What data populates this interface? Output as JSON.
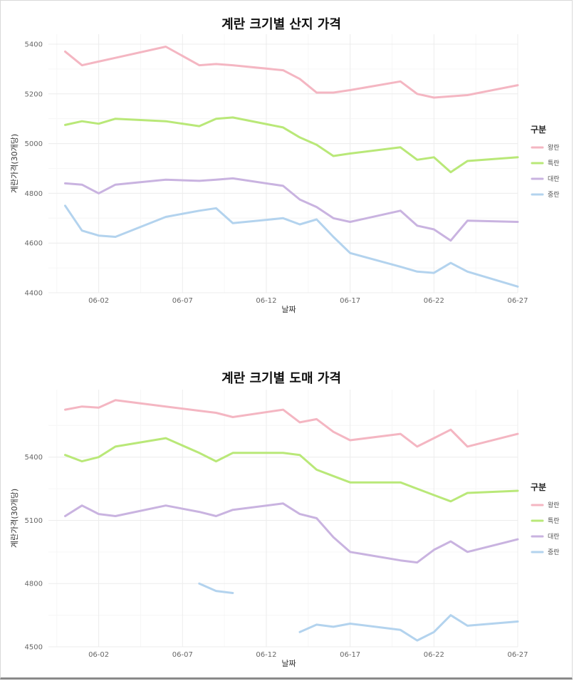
{
  "chart_data": [
    {
      "type": "line",
      "title": "계란 크기별 산지 가격",
      "xlabel": "날짜",
      "ylabel": "계란가격(30개당)",
      "x_ticks": [
        "06-02",
        "06-07",
        "06-12",
        "06-17",
        "06-22",
        "06-27"
      ],
      "xlim": [
        "05-30",
        "06-27"
      ],
      "y_ticks": [
        4400,
        4600,
        4800,
        5000,
        5200,
        5400
      ],
      "ylim": [
        4400,
        5440
      ],
      "grid": true,
      "legend_title": "구분",
      "legend_position": "right",
      "x": [
        "05-31",
        "06-01",
        "06-02",
        "06-03",
        "06-06",
        "06-08",
        "06-09",
        "06-10",
        "06-13",
        "06-14",
        "06-15",
        "06-16",
        "06-17",
        "06-20",
        "06-21",
        "06-22",
        "06-23",
        "06-24",
        "06-27"
      ],
      "series": [
        {
          "name": "왕란",
          "color": "#f4b6c2",
          "values": [
            5370,
            5315,
            5330,
            5345,
            5390,
            5315,
            5320,
            5315,
            5295,
            5260,
            5205,
            5205,
            5215,
            5250,
            5200,
            5185,
            5190,
            5195,
            5235
          ]
        },
        {
          "name": "특란",
          "color": "#b9e878",
          "values": [
            5075,
            5090,
            5080,
            5100,
            5090,
            5070,
            5100,
            5105,
            5065,
            5025,
            4995,
            4950,
            4960,
            4985,
            4935,
            4945,
            4885,
            4930,
            4945
          ]
        },
        {
          "name": "대란",
          "color": "#c9b3e0",
          "values": [
            4840,
            4835,
            4800,
            4835,
            4855,
            4850,
            4855,
            4860,
            4830,
            4775,
            4745,
            4700,
            4685,
            4730,
            4670,
            4655,
            4610,
            4690,
            4685
          ]
        },
        {
          "name": "중란",
          "color": "#b3d3ee",
          "values": [
            4750,
            4650,
            4630,
            4625,
            4705,
            4730,
            4740,
            4680,
            4700,
            4675,
            4695,
            4625,
            4560,
            4505,
            4485,
            4480,
            4520,
            4485,
            4425
          ]
        }
      ]
    },
    {
      "type": "line",
      "title": "계란 크기별 도매 가격",
      "xlabel": "날짜",
      "ylabel": "계란가격(30개당)",
      "x_ticks": [
        "06-02",
        "06-07",
        "06-12",
        "06-17",
        "06-22",
        "06-27"
      ],
      "xlim": [
        "05-30",
        "06-27"
      ],
      "y_ticks": [
        4500,
        4800,
        5100,
        5400
      ],
      "ylim": [
        4500,
        5720
      ],
      "grid": true,
      "legend_title": "구분",
      "legend_position": "right",
      "x": [
        "05-31",
        "06-01",
        "06-02",
        "06-03",
        "06-06",
        "06-08",
        "06-09",
        "06-10",
        "06-13",
        "06-14",
        "06-15",
        "06-16",
        "06-17",
        "06-20",
        "06-21",
        "06-22",
        "06-23",
        "06-24",
        "06-27"
      ],
      "series": [
        {
          "name": "왕란",
          "color": "#f4b6c2",
          "values": [
            5625,
            5640,
            5635,
            5670,
            5640,
            5620,
            5610,
            5590,
            5625,
            5565,
            5580,
            5520,
            5480,
            5510,
            5450,
            5490,
            5530,
            5450,
            5510
          ]
        },
        {
          "name": "특란",
          "color": "#b9e878",
          "values": [
            5410,
            5380,
            5400,
            5450,
            5490,
            5420,
            5380,
            5420,
            5420,
            5410,
            5340,
            5310,
            5280,
            5280,
            5250,
            5220,
            5190,
            5230,
            5240
          ]
        },
        {
          "name": "대란",
          "color": "#c9b3e0",
          "values": [
            5120,
            5170,
            5130,
            5120,
            5170,
            5140,
            5120,
            5150,
            5180,
            5130,
            5110,
            5020,
            4950,
            4910,
            4900,
            4960,
            5000,
            4950,
            5010
          ]
        },
        {
          "name": "중란",
          "color": "#b3d3ee",
          "values": [
            null,
            null,
            null,
            null,
            null,
            4800,
            4765,
            4755,
            null,
            4570,
            4605,
            4595,
            4610,
            4580,
            4530,
            4570,
            4650,
            4600,
            4620
          ]
        }
      ]
    }
  ]
}
